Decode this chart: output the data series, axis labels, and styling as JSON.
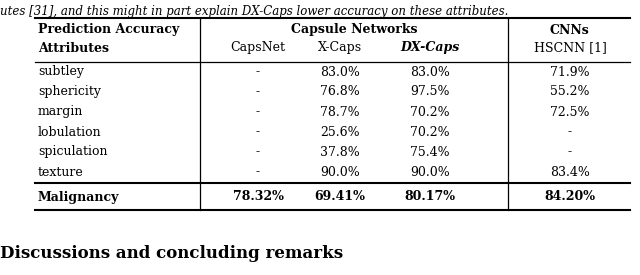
{
  "top_text": "utes [31], and this might in part explain DX-Caps lower accuracy on these attributes.",
  "col_header_row1": [
    "Prediction Accuracy",
    "Capsule Networks",
    "CNNs"
  ],
  "col_header_row2": [
    "Attributes",
    "CapsNet",
    "X-Caps",
    "DX-Caps",
    "HSCNN [1]"
  ],
  "rows": [
    [
      "subtley",
      "-",
      "83.0%",
      "83.0%",
      "71.9%"
    ],
    [
      "sphericity",
      "-",
      "76.8%",
      "97.5%",
      "55.2%"
    ],
    [
      "margin",
      "-",
      "78.7%",
      "70.2%",
      "72.5%"
    ],
    [
      "lobulation",
      "-",
      "25.6%",
      "70.2%",
      "-"
    ],
    [
      "spiculation",
      "-",
      "37.8%",
      "75.4%",
      "-"
    ],
    [
      "texture",
      "-",
      "90.0%",
      "90.0%",
      "83.4%"
    ]
  ],
  "bold_row": [
    "Malignancy",
    "78.32%",
    "69.41%",
    "80.17%",
    "84.20%"
  ],
  "footer_text": "Discussions and concluding remarks",
  "bg_color": "#ffffff",
  "text_color": "#000000",
  "font_size": 9.0,
  "footer_font_size": 12.0
}
